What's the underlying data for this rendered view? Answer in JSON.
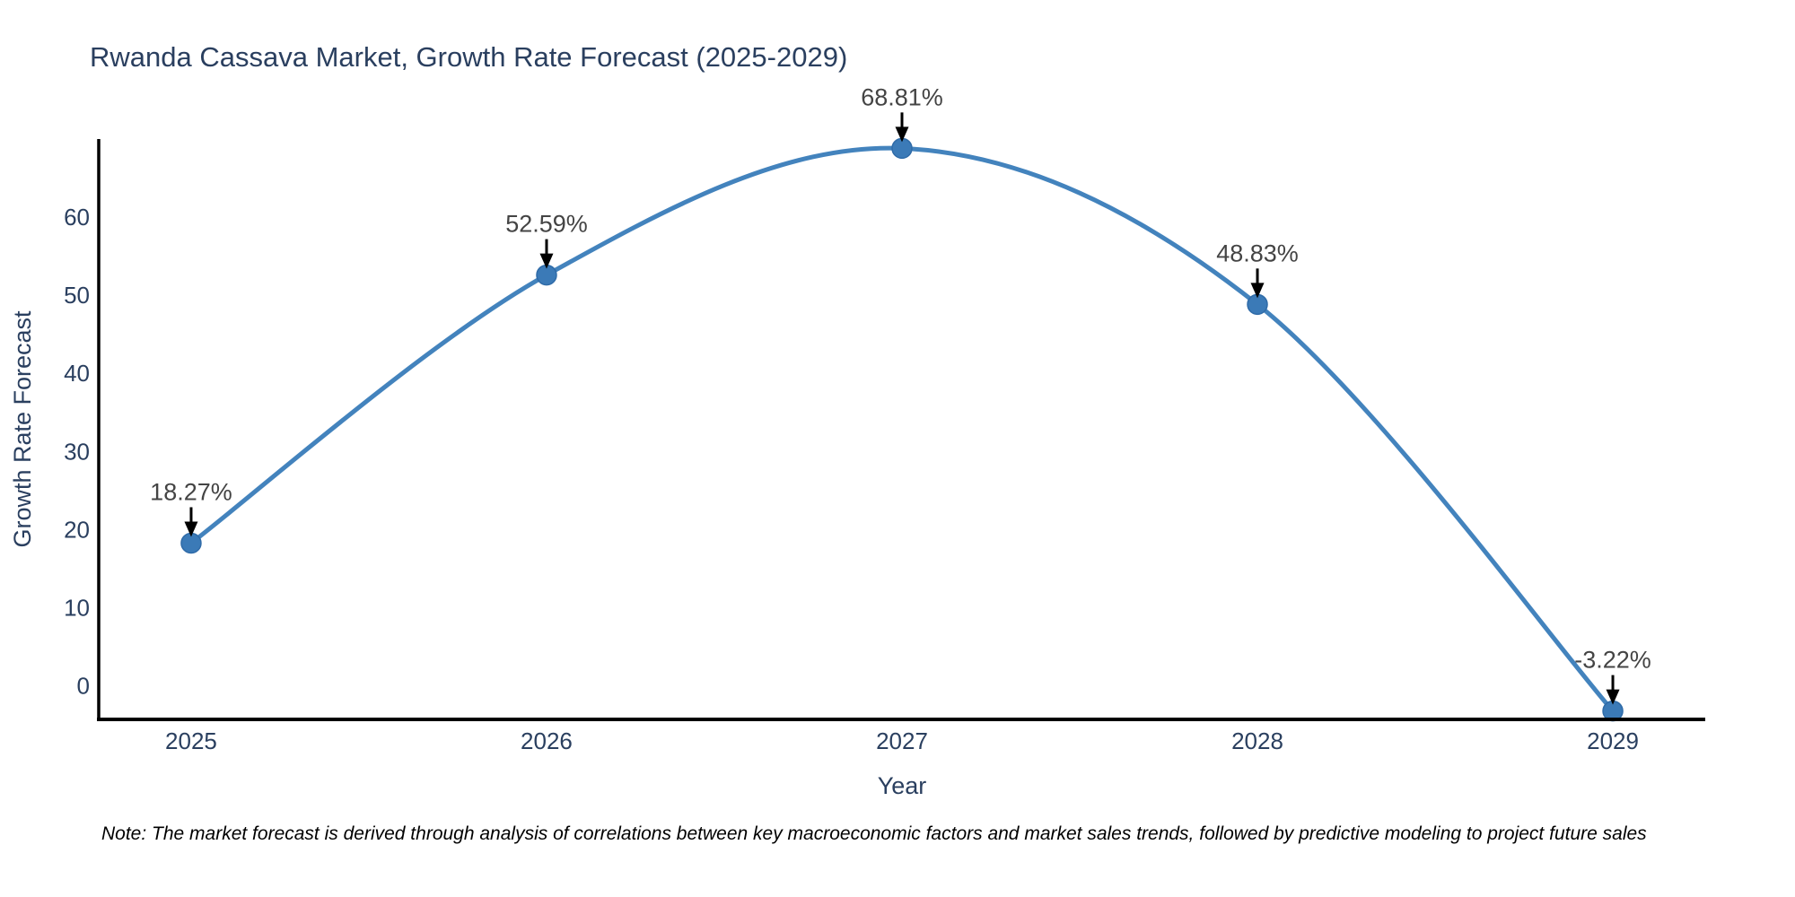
{
  "chart": {
    "title": "Rwanda Cassava Market, Growth Rate Forecast (2025-2029)",
    "note": "Note: The market forecast is derived through analysis of correlations between key macroeconomic factors and market sales trends, followed by predictive modeling to project future sales",
    "colors": {
      "line": "#4383bd",
      "marker_fill": "#3b7ab7",
      "marker_stroke": "#2f6ba8",
      "axis_line": "#000000",
      "tick_text": "#2a3f5f",
      "title_text": "#2a3f5f",
      "annotation_text": "#444444",
      "arrow": "#000000",
      "note_text": "#000000",
      "background": "#ffffff"
    }
  },
  "chart_data": {
    "type": "line",
    "title": "Rwanda Cassava Market, Growth Rate Forecast (2025-2029)",
    "x": [
      2025,
      2026,
      2027,
      2028,
      2029
    ],
    "categories": [
      "2025",
      "2026",
      "2027",
      "2028",
      "2029"
    ],
    "values": [
      18.27,
      52.59,
      68.81,
      48.83,
      -3.22
    ],
    "point_labels": [
      "18.27%",
      "52.59%",
      "68.81%",
      "48.83%",
      "-3.22%"
    ],
    "xlabel": "Year",
    "ylabel": "Growth Rate Forecast",
    "yticks": [
      0,
      10,
      20,
      30,
      40,
      50,
      60
    ],
    "xlim": [
      2024.74,
      2029.26
    ],
    "ylim": [
      -4.3,
      70
    ],
    "grid": false,
    "legend": "none",
    "line_shape": "spline",
    "annotation_style": "value label above each point with black arrow pointing down to marker"
  }
}
